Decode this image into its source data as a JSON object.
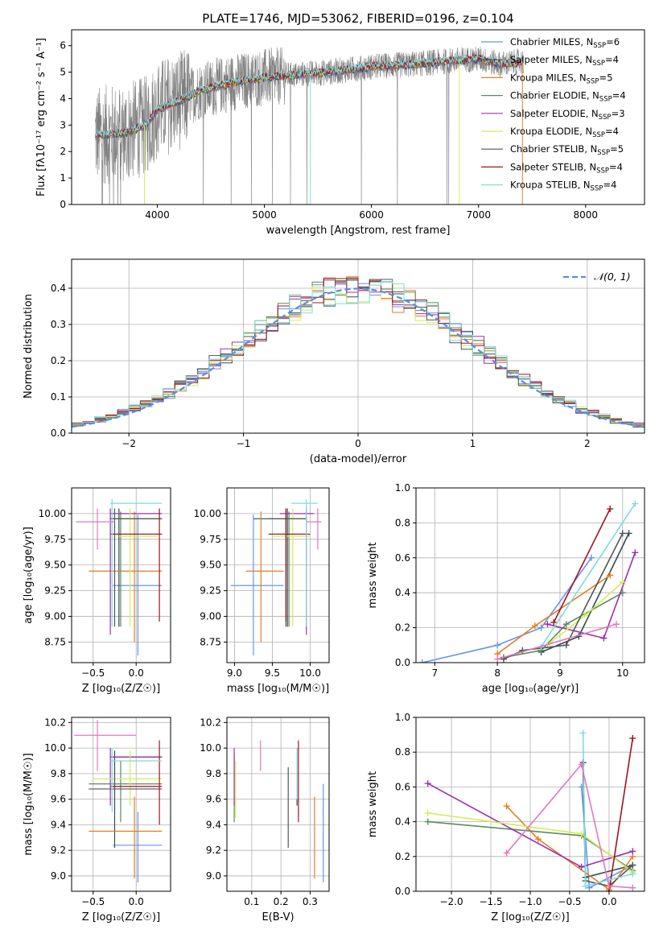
{
  "figure_title": "PLATE=1746, MJD=53062, FIBERID=0196, z=0.104",
  "series_legend": [
    {
      "name": "Chabrier MILES, N",
      "sub": "SSP",
      "val": "=6",
      "color": "#6495ED"
    },
    {
      "name": "Salpeter MILES, N",
      "sub": "SSP",
      "val": "=4",
      "color": "#2F4F4F"
    },
    {
      "name": "Kroupa MILES, N",
      "sub": "SSP",
      "val": "=5",
      "color": "#E67E22"
    },
    {
      "name": "Chabrier ELODIE, N",
      "sub": "SSP",
      "val": "=4",
      "color": "#5B8C5A"
    },
    {
      "name": "Salpeter ELODIE, N",
      "sub": "SSP",
      "val": "=3",
      "color": "#9B30B0"
    },
    {
      "name": "Kroupa ELODIE, N",
      "sub": "SSP",
      "val": "=4",
      "color": "#D4EC5A"
    },
    {
      "name": "Chabrier STELIB, N",
      "sub": "SSP",
      "val": "=5",
      "color": "#555555"
    },
    {
      "name": "Salpeter STELIB, N",
      "sub": "SSP",
      "val": "=4",
      "color": "#A0141E"
    },
    {
      "name": "Kroupa STELIB, N",
      "sub": "SSP",
      "val": "=4",
      "color": "#7FDBE0"
    }
  ],
  "extra_colors": {
    "pink": "#E377C2",
    "spectrum_gray": "#808080",
    "normal_curve": "#5B8DD9"
  },
  "chart_data": [
    {
      "id": "spectrum",
      "type": "line",
      "xlabel": "wavelength [Angstrom, rest frame]",
      "ylabel": "Flux [fλ10⁻¹⁷ erg cm⁻² s⁻¹ A⁻¹]",
      "xlim": [
        3200,
        8550
      ],
      "ylim": [
        0,
        6.6
      ],
      "xticks": [
        4000,
        5000,
        6000,
        7000,
        8000
      ],
      "yticks": [
        0,
        1,
        2,
        3,
        4,
        5,
        6
      ],
      "data_range": [
        3420,
        7420
      ],
      "continuum": [
        [
          3420,
          2.6
        ],
        [
          3700,
          2.7
        ],
        [
          3900,
          3.0
        ],
        [
          4000,
          3.6
        ],
        [
          4200,
          3.9
        ],
        [
          4400,
          4.3
        ],
        [
          4700,
          4.6
        ],
        [
          5000,
          4.8
        ],
        [
          5300,
          4.9
        ],
        [
          5600,
          5.0
        ],
        [
          6000,
          5.2
        ],
        [
          6400,
          5.3
        ],
        [
          6800,
          5.45
        ],
        [
          7000,
          5.5
        ],
        [
          7200,
          5.3
        ],
        [
          7420,
          5.4
        ]
      ]
    },
    {
      "id": "residuals",
      "type": "histogram",
      "xlabel": "(data-model)/error",
      "ylabel": "Normed distribution",
      "xlim": [
        -2.5,
        2.5
      ],
      "ylim": [
        0,
        0.48
      ],
      "xticks": [
        -2,
        -1,
        0,
        1,
        2
      ],
      "yticks": [
        0.0,
        0.1,
        0.2,
        0.3,
        0.4
      ],
      "bin_width": 0.1,
      "legend": "𝒩(0, 1)",
      "curve": "normal(0,1)"
    },
    {
      "id": "age_vs_Z",
      "type": "errorbar",
      "xlabel": "Z [log₁₀(Z/Z☉)]",
      "ylabel": "age  [log₁₀(age/yr)]",
      "xlim": [
        -0.75,
        0.4
      ],
      "ylim": [
        8.55,
        10.25
      ],
      "xticks": [
        -0.5,
        0.0
      ],
      "yticks": [
        8.75,
        9.0,
        9.25,
        9.5,
        9.75,
        10.0
      ],
      "points": [
        {
          "c": 0,
          "x": 0.02,
          "y": 9.3,
          "xl": -0.27,
          "xh": 0.3,
          "yl": 8.62,
          "yh": 9.99
        },
        {
          "c": 1,
          "x": -0.2,
          "y": 9.95,
          "xl": -0.3,
          "xh": 0.3,
          "yl": 8.9,
          "yh": 10.05
        },
        {
          "c": 2,
          "x": -0.02,
          "y": 9.44,
          "xl": -0.55,
          "xh": 0.3,
          "yl": 8.75,
          "yh": 10.02
        },
        {
          "c": 3,
          "x": -0.18,
          "y": 9.8,
          "xl": -0.3,
          "xh": 0.3,
          "yl": 8.9,
          "yh": 10.02
        },
        {
          "c": 4,
          "x": -0.3,
          "y": 10.0,
          "xl": -0.3,
          "xh": 0.3,
          "yl": 8.82,
          "yh": 10.05
        },
        {
          "c": 5,
          "x": -0.07,
          "y": 9.78,
          "xl": -0.2,
          "xh": 0.25,
          "yl": 8.9,
          "yh": 10.05
        },
        {
          "c": 6,
          "x": -0.25,
          "y": 9.95,
          "xl": -0.3,
          "xh": 0.3,
          "yl": 8.9,
          "yh": 10.05
        },
        {
          "c": 7,
          "x": 0.27,
          "y": 9.8,
          "xl": -0.3,
          "xh": 0.3,
          "yl": 8.95,
          "yh": 10.05
        },
        {
          "c": 8,
          "x": -0.28,
          "y": 10.1,
          "xl": -0.3,
          "xh": 0.3,
          "yl": 8.9,
          "yh": 10.14
        },
        {
          "c": 9,
          "x": -0.45,
          "y": 9.92,
          "xl": -0.7,
          "xh": -0.25,
          "yl": 9.65,
          "yh": 10.05
        }
      ]
    },
    {
      "id": "age_vs_mass",
      "type": "errorbar",
      "xlabel": "mass [log₁₀(M/M☉)]",
      "ylabel": "",
      "xlim": [
        8.9,
        10.25
      ],
      "ylim": [
        8.55,
        10.25
      ],
      "xticks": [
        9.0,
        9.5,
        10.0
      ],
      "yticks": [
        8.75,
        9.0,
        9.25,
        9.5,
        9.75,
        10.0
      ],
      "points": [
        {
          "c": 0,
          "x": 9.25,
          "y": 9.3,
          "xl": 8.95,
          "xh": 9.65,
          "yl": 8.62,
          "yh": 9.99
        },
        {
          "c": 1,
          "x": 9.7,
          "y": 9.95,
          "xl": 9.25,
          "xh": 9.95,
          "yl": 8.9,
          "yh": 10.05
        },
        {
          "c": 2,
          "x": 9.35,
          "y": 9.44,
          "xl": 9.15,
          "xh": 9.65,
          "yl": 8.75,
          "yh": 10.02
        },
        {
          "c": 3,
          "x": 9.72,
          "y": 9.8,
          "xl": 9.45,
          "xh": 9.95,
          "yl": 8.9,
          "yh": 10.02
        },
        {
          "c": 4,
          "x": 9.95,
          "y": 10.0,
          "xl": 9.6,
          "xh": 10.05,
          "yl": 8.82,
          "yh": 10.05
        },
        {
          "c": 5,
          "x": 9.77,
          "y": 9.78,
          "xl": 9.5,
          "xh": 10.0,
          "yl": 8.9,
          "yh": 10.05
        },
        {
          "c": 6,
          "x": 9.68,
          "y": 9.95,
          "xl": 9.45,
          "xh": 9.95,
          "yl": 8.9,
          "yh": 10.05
        },
        {
          "c": 7,
          "x": 9.68,
          "y": 9.8,
          "xl": 9.45,
          "xh": 10.0,
          "yl": 8.95,
          "yh": 10.05
        },
        {
          "c": 8,
          "x": 9.95,
          "y": 10.1,
          "xl": 9.75,
          "xh": 10.1,
          "yl": 8.9,
          "yh": 10.14
        },
        {
          "c": 9,
          "x": 10.1,
          "y": 9.92,
          "xl": 9.95,
          "xh": 10.15,
          "yl": 9.65,
          "yh": 10.05
        }
      ]
    },
    {
      "id": "weight_vs_age",
      "type": "line",
      "xlabel": "age  [log₁₀(age/yr)]",
      "ylabel": "mass weight",
      "xlim": [
        6.7,
        10.35
      ],
      "ylim": [
        0,
        1.0
      ],
      "xticks": [
        7,
        8,
        9,
        10
      ],
      "yticks": [
        0.0,
        0.2,
        0.4,
        0.6,
        0.8,
        1.0
      ],
      "series": [
        {
          "c": 0,
          "pts": [
            [
              6.8,
              0.0
            ],
            [
              8.0,
              0.1
            ],
            [
              8.7,
              0.2
            ],
            [
              9.5,
              0.6
            ]
          ]
        },
        {
          "c": 1,
          "pts": [
            [
              8.7,
              0.06
            ],
            [
              9.3,
              0.15
            ],
            [
              10.1,
              0.74
            ]
          ]
        },
        {
          "c": 2,
          "pts": [
            [
              8.0,
              0.05
            ],
            [
              8.6,
              0.21
            ],
            [
              9.8,
              0.5
            ]
          ]
        },
        {
          "c": 3,
          "pts": [
            [
              8.1,
              0.03
            ],
            [
              8.7,
              0.07
            ],
            [
              9.1,
              0.22
            ],
            [
              10.0,
              0.4
            ]
          ]
        },
        {
          "c": 4,
          "pts": [
            [
              8.8,
              0.22
            ],
            [
              9.7,
              0.14
            ],
            [
              10.2,
              0.63
            ]
          ]
        },
        {
          "c": 5,
          "pts": [
            [
              8.8,
              0.1
            ],
            [
              9.4,
              0.27
            ],
            [
              10.0,
              0.46
            ]
          ]
        },
        {
          "c": 6,
          "pts": [
            [
              8.1,
              0.02
            ],
            [
              8.4,
              0.07
            ],
            [
              9.1,
              0.1
            ],
            [
              10.0,
              0.74
            ]
          ]
        },
        {
          "c": 7,
          "pts": [
            [
              8.9,
              0.23
            ],
            [
              9.8,
              0.88
            ]
          ]
        },
        {
          "c": 8,
          "pts": [
            [
              8.7,
              0.09
            ],
            [
              10.2,
              0.91
            ]
          ]
        },
        {
          "c": 9,
          "pts": [
            [
              8.0,
              0.02
            ],
            [
              9.9,
              0.22
            ]
          ]
        }
      ]
    },
    {
      "id": "mass_vs_Z",
      "type": "errorbar",
      "xlabel": "Z [log₁₀(Z/Z☉)]",
      "ylabel": "mass [log₁₀(M/M☉)]",
      "xlim": [
        -0.75,
        0.4
      ],
      "ylim": [
        8.88,
        10.24
      ],
      "xticks": [
        -0.5,
        0.0
      ],
      "yticks": [
        9.0,
        9.2,
        9.4,
        9.6,
        9.8,
        10.0,
        10.2
      ],
      "points": [
        {
          "c": 0,
          "x": 0.02,
          "y": 9.24,
          "xl": -0.27,
          "xh": 0.3,
          "yl": 8.95,
          "yh": 9.5
        },
        {
          "c": 1,
          "x": -0.25,
          "y": 9.93,
          "xl": -0.3,
          "xh": 0.3,
          "yl": 9.22,
          "yh": 9.98
        },
        {
          "c": 2,
          "x": -0.02,
          "y": 9.35,
          "xl": -0.55,
          "xh": 0.3,
          "yl": 8.98,
          "yh": 9.62
        },
        {
          "c": 3,
          "x": -0.18,
          "y": 9.72,
          "xl": -0.55,
          "xh": 0.3,
          "yl": 9.42,
          "yh": 9.9
        },
        {
          "c": 4,
          "x": -0.3,
          "y": 9.93,
          "xl": -0.3,
          "xh": 0.3,
          "yl": 9.55,
          "yh": 10.0
        },
        {
          "c": 5,
          "x": -0.07,
          "y": 9.76,
          "xl": -0.5,
          "xh": 0.3,
          "yl": 9.55,
          "yh": 9.98
        },
        {
          "c": 6,
          "x": -0.25,
          "y": 9.68,
          "xl": -0.55,
          "xh": 0.3,
          "yl": 9.5,
          "yh": 9.85
        },
        {
          "c": 7,
          "x": 0.27,
          "y": 9.7,
          "xl": -0.3,
          "xh": 0.3,
          "yl": 9.4,
          "yh": 10.06
        },
        {
          "c": 8,
          "x": -0.28,
          "y": 9.9,
          "xl": -0.3,
          "xh": 0.3,
          "yl": 9.5,
          "yh": 10.0
        },
        {
          "c": 9,
          "x": -0.45,
          "y": 10.1,
          "xl": -0.72,
          "xh": 0.0,
          "yl": 9.82,
          "yh": 10.22
        }
      ]
    },
    {
      "id": "mass_vs_ebv",
      "type": "errorbar",
      "xlabel": "E(B-V)",
      "ylabel": "",
      "xlim": [
        0.015,
        0.365
      ],
      "ylim": [
        8.88,
        10.24
      ],
      "xticks": [
        0.1,
        0.2,
        0.3
      ],
      "yticks": [
        9.0,
        9.2,
        9.4,
        9.6,
        9.8,
        10.0,
        10.2
      ],
      "points": [
        {
          "c": 0,
          "x": 0.345,
          "y": 9.24,
          "yl": 8.95,
          "yh": 9.72
        },
        {
          "c": 1,
          "x": 0.255,
          "y": 9.65,
          "yl": 9.55,
          "yh": 10.0
        },
        {
          "c": 2,
          "x": 0.315,
          "y": 9.3,
          "yl": 8.98,
          "yh": 9.62
        },
        {
          "c": 3,
          "x": 0.04,
          "y": 9.72,
          "yl": 9.42,
          "yh": 9.96
        },
        {
          "c": 4,
          "x": 0.04,
          "y": 9.9,
          "yl": 9.55,
          "yh": 10.0
        },
        {
          "c": 5,
          "x": 0.045,
          "y": 9.6,
          "yl": 9.45,
          "yh": 9.9
        },
        {
          "c": 6,
          "x": 0.225,
          "y": 9.5,
          "yl": 9.22,
          "yh": 9.85
        },
        {
          "c": 7,
          "x": 0.26,
          "y": 9.75,
          "yl": 9.42,
          "yh": 10.06
        },
        {
          "c": 8,
          "x": 0.255,
          "y": 9.8,
          "yl": 9.6,
          "yh": 10.0
        },
        {
          "c": 9,
          "x": 0.13,
          "y": 9.95,
          "yl": 9.82,
          "yh": 10.06
        }
      ]
    },
    {
      "id": "weight_vs_Z",
      "type": "line",
      "xlabel": "Z [log₁₀(Z/Z☉)]",
      "ylabel": "mass weight",
      "xlim": [
        -2.45,
        0.45
      ],
      "ylim": [
        0,
        1.0
      ],
      "xticks": [
        -2.0,
        -1.5,
        -1.0,
        -0.5,
        0.0
      ],
      "yticks": [
        0.0,
        0.2,
        0.4,
        0.6,
        0.8,
        1.0
      ],
      "series": [
        {
          "c": 0,
          "pts": [
            [
              -0.35,
              0.6
            ],
            [
              -0.25,
              0.02
            ],
            [
              0.3,
              0.15
            ]
          ]
        },
        {
          "c": 1,
          "pts": [
            [
              -0.33,
              0.74
            ],
            [
              -0.3,
              0.08
            ],
            [
              0.3,
              0.15
            ]
          ]
        },
        {
          "c": 2,
          "pts": [
            [
              -1.3,
              0.49
            ],
            [
              -0.9,
              0.3
            ],
            [
              0.0,
              0.01
            ],
            [
              0.3,
              0.2
            ]
          ]
        },
        {
          "c": 3,
          "pts": [
            [
              -2.3,
              0.4
            ],
            [
              -0.35,
              0.32
            ],
            [
              0.3,
              0.12
            ]
          ]
        },
        {
          "c": 4,
          "pts": [
            [
              -2.3,
              0.62
            ],
            [
              -0.35,
              0.14
            ],
            [
              0.3,
              0.23
            ]
          ]
        },
        {
          "c": 5,
          "pts": [
            [
              -2.3,
              0.45
            ],
            [
              -0.35,
              0.33
            ],
            [
              0.3,
              0.11
            ]
          ]
        },
        {
          "c": 6,
          "pts": [
            [
              -0.33,
              0.74
            ],
            [
              -0.3,
              0.06
            ],
            [
              0.0,
              0.03
            ],
            [
              0.3,
              0.15
            ]
          ]
        },
        {
          "c": 7,
          "pts": [
            [
              0.0,
              0.0
            ],
            [
              0.3,
              0.88
            ]
          ]
        },
        {
          "c": 8,
          "pts": [
            [
              -0.33,
              0.91
            ],
            [
              -0.3,
              0.03
            ],
            [
              0.3,
              0.1
            ]
          ]
        },
        {
          "c": 9,
          "pts": [
            [
              -1.3,
              0.22
            ],
            [
              -0.35,
              0.73
            ],
            [
              0.0,
              0.03
            ],
            [
              0.3,
              0.02
            ]
          ]
        }
      ]
    }
  ]
}
